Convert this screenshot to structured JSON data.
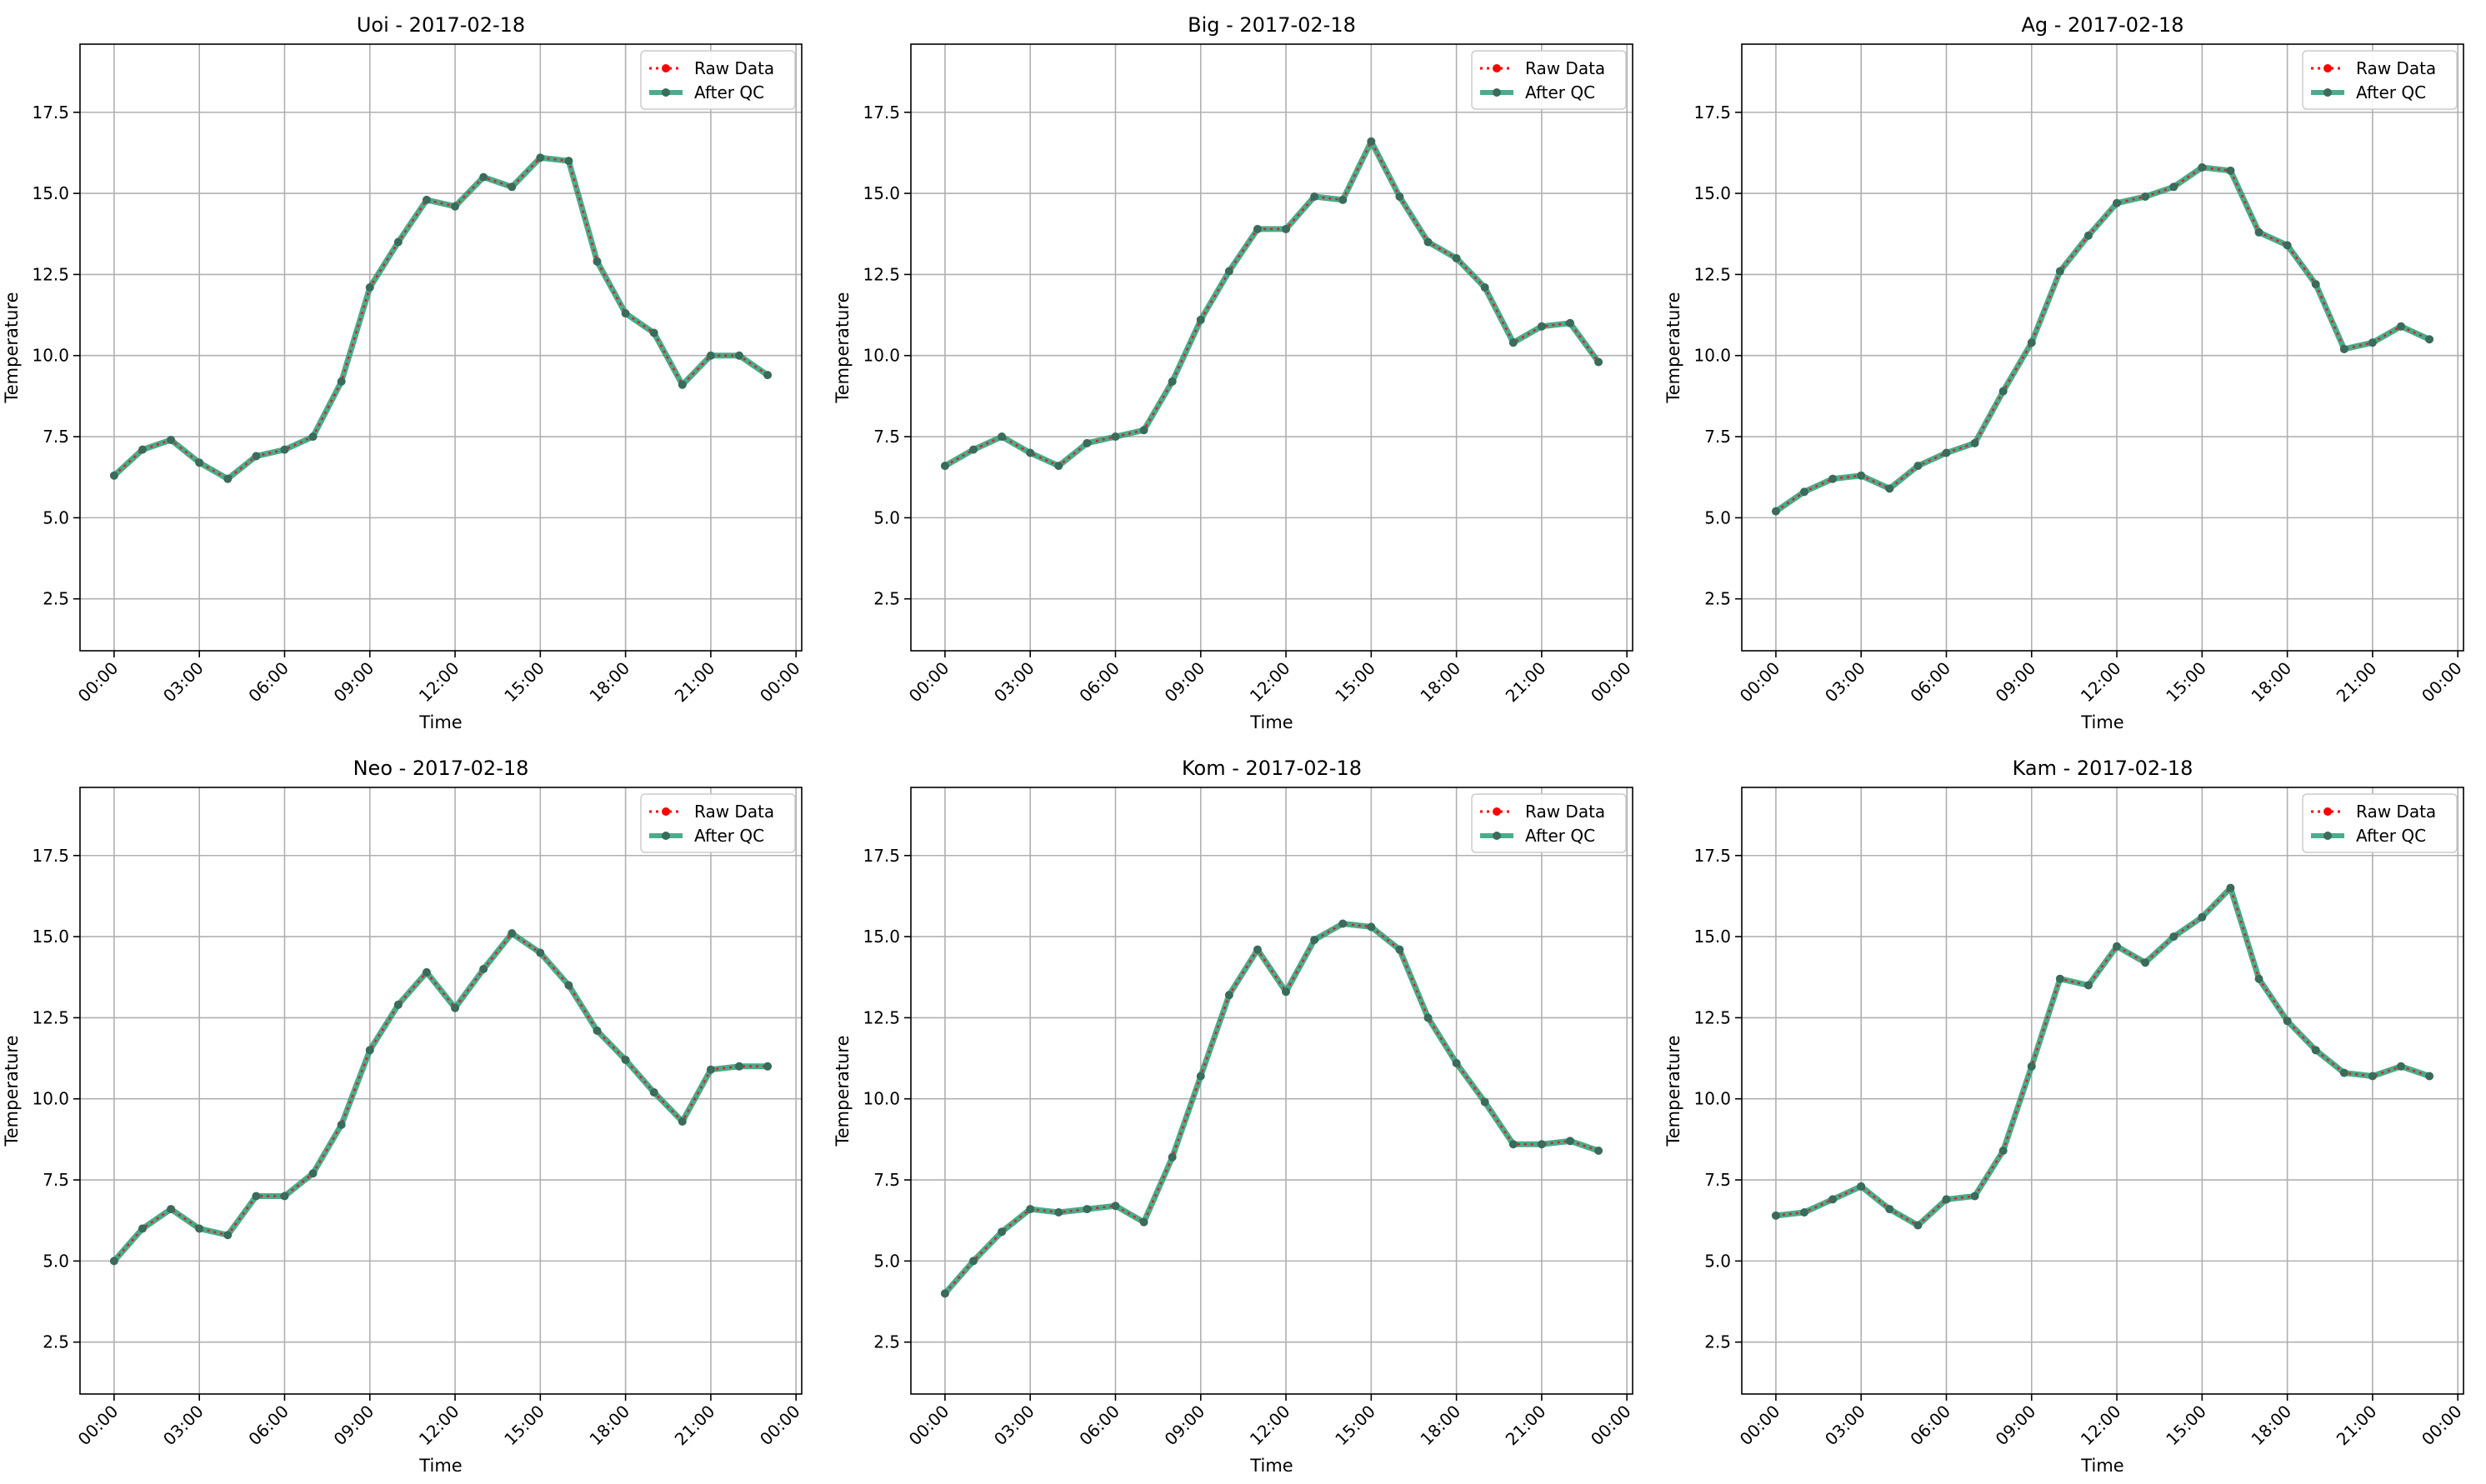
{
  "figure": {
    "legend_labels": {
      "raw": "Raw Data",
      "qc": "After QC"
    },
    "colors": {
      "raw": "#ff0000",
      "qc": "#2a9d78",
      "qc_marker": "#3b6b5a",
      "grid": "#b0b0b0",
      "axes": "#000000"
    },
    "legend_position": "upper right",
    "grid": true
  },
  "chart_data": [
    {
      "type": "line",
      "title": "Uoi - 2017-02-18",
      "xlabel": "Time",
      "ylabel": "Temperature",
      "x_hours": [
        0,
        1,
        2,
        3,
        4,
        5,
        6,
        7,
        8,
        9,
        10,
        11,
        12,
        13,
        14,
        15,
        16,
        17,
        18,
        19,
        20,
        21,
        22,
        23
      ],
      "xlim_hours": [
        -1.2,
        24.2
      ],
      "ylim": [
        0.9,
        19.6
      ],
      "x_ticks": [
        "00:00",
        "03:00",
        "06:00",
        "09:00",
        "12:00",
        "15:00",
        "18:00",
        "21:00",
        "00:00"
      ],
      "y_ticks": [
        "2.5",
        "5.0",
        "7.5",
        "10.0",
        "12.5",
        "15.0",
        "17.5"
      ],
      "series": [
        {
          "name": "Raw Data",
          "values": [
            6.3,
            7.1,
            7.4,
            6.7,
            6.2,
            6.9,
            7.1,
            7.5,
            9.2,
            12.1,
            13.5,
            14.8,
            14.6,
            15.5,
            15.2,
            16.1,
            16.0,
            12.9,
            11.3,
            10.7,
            9.1,
            10.0,
            10.0,
            9.4
          ]
        },
        {
          "name": "After QC",
          "values": [
            6.3,
            7.1,
            7.4,
            6.7,
            6.2,
            6.9,
            7.1,
            7.5,
            9.2,
            12.1,
            13.5,
            14.8,
            14.6,
            15.5,
            15.2,
            16.1,
            16.0,
            12.9,
            11.3,
            10.7,
            9.1,
            10.0,
            10.0,
            9.4
          ]
        }
      ]
    },
    {
      "type": "line",
      "title": "Big - 2017-02-18",
      "xlabel": "Time",
      "ylabel": "Temperature",
      "x_hours": [
        0,
        1,
        2,
        3,
        4,
        5,
        6,
        7,
        8,
        9,
        10,
        11,
        12,
        13,
        14,
        15,
        16,
        17,
        18,
        19,
        20,
        21,
        22,
        23
      ],
      "xlim_hours": [
        -1.2,
        24.2
      ],
      "ylim": [
        0.9,
        19.6
      ],
      "x_ticks": [
        "00:00",
        "03:00",
        "06:00",
        "09:00",
        "12:00",
        "15:00",
        "18:00",
        "21:00",
        "00:00"
      ],
      "y_ticks": [
        "2.5",
        "5.0",
        "7.5",
        "10.0",
        "12.5",
        "15.0",
        "17.5"
      ],
      "series": [
        {
          "name": "Raw Data",
          "values": [
            6.6,
            7.1,
            7.5,
            7.0,
            6.6,
            7.3,
            7.5,
            7.7,
            9.2,
            11.1,
            12.6,
            13.9,
            13.9,
            14.9,
            14.8,
            16.6,
            14.9,
            13.5,
            13.0,
            12.1,
            10.4,
            10.9,
            11.0,
            9.8
          ]
        },
        {
          "name": "After QC",
          "values": [
            6.6,
            7.1,
            7.5,
            7.0,
            6.6,
            7.3,
            7.5,
            7.7,
            9.2,
            11.1,
            12.6,
            13.9,
            13.9,
            14.9,
            14.8,
            16.6,
            14.9,
            13.5,
            13.0,
            12.1,
            10.4,
            10.9,
            11.0,
            9.8
          ]
        }
      ]
    },
    {
      "type": "line",
      "title": "Ag - 2017-02-18",
      "xlabel": "Time",
      "ylabel": "Temperature",
      "x_hours": [
        0,
        1,
        2,
        3,
        4,
        5,
        6,
        7,
        8,
        9,
        10,
        11,
        12,
        13,
        14,
        15,
        16,
        17,
        18,
        19,
        20,
        21,
        22,
        23
      ],
      "xlim_hours": [
        -1.2,
        24.2
      ],
      "ylim": [
        0.9,
        19.6
      ],
      "x_ticks": [
        "00:00",
        "03:00",
        "06:00",
        "09:00",
        "12:00",
        "15:00",
        "18:00",
        "21:00",
        "00:00"
      ],
      "y_ticks": [
        "2.5",
        "5.0",
        "7.5",
        "10.0",
        "12.5",
        "15.0",
        "17.5"
      ],
      "series": [
        {
          "name": "Raw Data",
          "values": [
            5.2,
            5.8,
            6.2,
            6.3,
            5.9,
            6.6,
            7.0,
            7.3,
            8.9,
            10.4,
            12.6,
            13.7,
            14.7,
            14.9,
            15.2,
            15.8,
            15.7,
            13.8,
            13.4,
            12.2,
            10.2,
            10.4,
            10.9,
            10.5
          ]
        },
        {
          "name": "After QC",
          "values": [
            5.2,
            5.8,
            6.2,
            6.3,
            5.9,
            6.6,
            7.0,
            7.3,
            8.9,
            10.4,
            12.6,
            13.7,
            14.7,
            14.9,
            15.2,
            15.8,
            15.7,
            13.8,
            13.4,
            12.2,
            10.2,
            10.4,
            10.9,
            10.5
          ]
        }
      ]
    },
    {
      "type": "line",
      "title": "Neo - 2017-02-18",
      "xlabel": "Time",
      "ylabel": "Temperature",
      "x_hours": [
        0,
        1,
        2,
        3,
        4,
        5,
        6,
        7,
        8,
        9,
        10,
        11,
        12,
        13,
        14,
        15,
        16,
        17,
        18,
        19,
        20,
        21,
        22,
        23
      ],
      "xlim_hours": [
        -1.2,
        24.2
      ],
      "ylim": [
        0.9,
        19.6
      ],
      "x_ticks": [
        "00:00",
        "03:00",
        "06:00",
        "09:00",
        "12:00",
        "15:00",
        "18:00",
        "21:00",
        "00:00"
      ],
      "y_ticks": [
        "2.5",
        "5.0",
        "7.5",
        "10.0",
        "12.5",
        "15.0",
        "17.5"
      ],
      "series": [
        {
          "name": "Raw Data",
          "values": [
            5.0,
            6.0,
            6.6,
            6.0,
            5.8,
            7.0,
            7.0,
            7.7,
            9.2,
            11.5,
            12.9,
            13.9,
            12.8,
            14.0,
            15.1,
            14.5,
            13.5,
            12.1,
            11.2,
            10.2,
            9.3,
            10.9,
            11.0,
            11.0
          ]
        },
        {
          "name": "After QC",
          "values": [
            5.0,
            6.0,
            6.6,
            6.0,
            5.8,
            7.0,
            7.0,
            7.7,
            9.2,
            11.5,
            12.9,
            13.9,
            12.8,
            14.0,
            15.1,
            14.5,
            13.5,
            12.1,
            11.2,
            10.2,
            9.3,
            10.9,
            11.0,
            11.0
          ]
        }
      ]
    },
    {
      "type": "line",
      "title": "Kom - 2017-02-18",
      "xlabel": "Time",
      "ylabel": "Temperature",
      "x_hours": [
        0,
        1,
        2,
        3,
        4,
        5,
        6,
        7,
        8,
        9,
        10,
        11,
        12,
        13,
        14,
        15,
        16,
        17,
        18,
        19,
        20,
        21,
        22,
        23
      ],
      "xlim_hours": [
        -1.2,
        24.2
      ],
      "ylim": [
        0.9,
        19.6
      ],
      "x_ticks": [
        "00:00",
        "03:00",
        "06:00",
        "09:00",
        "12:00",
        "15:00",
        "18:00",
        "21:00",
        "00:00"
      ],
      "y_ticks": [
        "2.5",
        "5.0",
        "7.5",
        "10.0",
        "12.5",
        "15.0",
        "17.5"
      ],
      "series": [
        {
          "name": "Raw Data",
          "values": [
            4.0,
            5.0,
            5.9,
            6.6,
            6.5,
            6.6,
            6.7,
            6.2,
            8.2,
            10.7,
            13.2,
            14.6,
            13.3,
            14.9,
            15.4,
            15.3,
            14.6,
            12.5,
            11.1,
            9.9,
            8.6,
            8.6,
            8.7,
            8.4
          ]
        },
        {
          "name": "After QC",
          "values": [
            4.0,
            5.0,
            5.9,
            6.6,
            6.5,
            6.6,
            6.7,
            6.2,
            8.2,
            10.7,
            13.2,
            14.6,
            13.3,
            14.9,
            15.4,
            15.3,
            14.6,
            12.5,
            11.1,
            9.9,
            8.6,
            8.6,
            8.7,
            8.4
          ]
        }
      ]
    },
    {
      "type": "line",
      "title": "Kam - 2017-02-18",
      "xlabel": "Time",
      "ylabel": "Temperature",
      "x_hours": [
        0,
        1,
        2,
        3,
        4,
        5,
        6,
        7,
        8,
        9,
        10,
        11,
        12,
        13,
        14,
        15,
        16,
        17,
        18,
        19,
        20,
        21,
        22,
        23
      ],
      "xlim_hours": [
        -1.2,
        24.2
      ],
      "ylim": [
        0.9,
        19.6
      ],
      "x_ticks": [
        "00:00",
        "03:00",
        "06:00",
        "09:00",
        "12:00",
        "15:00",
        "18:00",
        "21:00",
        "00:00"
      ],
      "y_ticks": [
        "2.5",
        "5.0",
        "7.5",
        "10.0",
        "12.5",
        "15.0",
        "17.5"
      ],
      "series": [
        {
          "name": "Raw Data",
          "values": [
            6.4,
            6.5,
            6.9,
            7.3,
            6.6,
            6.1,
            6.9,
            7.0,
            8.4,
            11.0,
            13.7,
            13.5,
            14.7,
            14.2,
            15.0,
            15.6,
            16.5,
            13.7,
            12.4,
            11.5,
            10.8,
            10.7,
            11.0,
            10.7
          ]
        },
        {
          "name": "After QC",
          "values": [
            6.4,
            6.5,
            6.9,
            7.3,
            6.6,
            6.1,
            6.9,
            7.0,
            8.4,
            11.0,
            13.7,
            13.5,
            14.7,
            14.2,
            15.0,
            15.6,
            16.5,
            13.7,
            12.4,
            11.5,
            10.8,
            10.7,
            11.0,
            10.7
          ]
        }
      ]
    }
  ]
}
